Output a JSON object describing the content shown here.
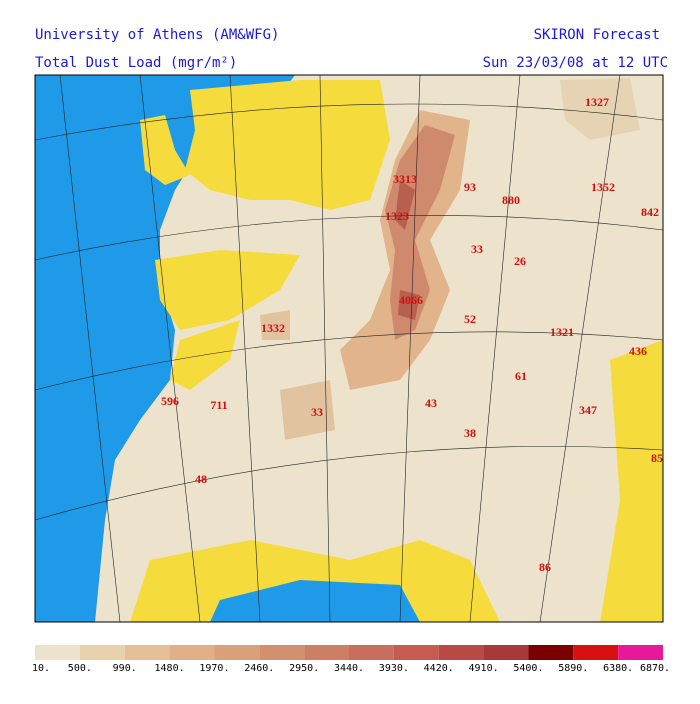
{
  "header": {
    "institution": "University of Athens (AM&WFG)",
    "product": "SKIRON Forecast",
    "field": "Total Dust Load (mgr/m²)",
    "valid_time": "Sun 23/03/08 at 12 UTC"
  },
  "map_labels": [
    "1327",
    "3313",
    "93",
    "880",
    "1352",
    "842",
    "1323",
    "33",
    "26",
    "4066",
    "52",
    "1332",
    "1321",
    "436",
    "61",
    "596",
    "711",
    "33",
    "43",
    "347",
    "38",
    "85",
    "48",
    "86"
  ],
  "colorbar": {
    "labels": [
      "10.",
      "500.",
      "990.",
      "1480.",
      "1970.",
      "2460.",
      "2950.",
      "3440.",
      "3930.",
      "4420.",
      "4910.",
      "5400.",
      "5890.",
      "6380.",
      "6870."
    ]
  }
}
